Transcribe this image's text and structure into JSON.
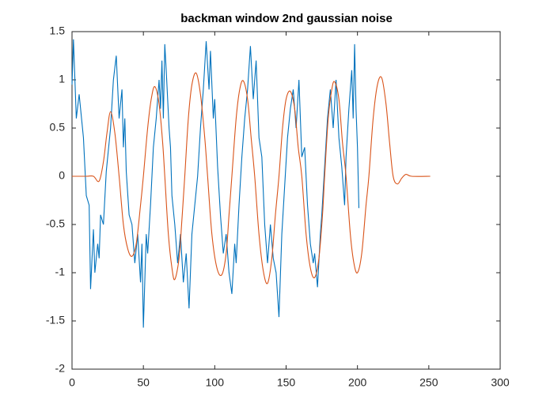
{
  "chart_data": {
    "type": "line",
    "title": "backman window 2nd gaussian noise",
    "xlim": [
      0,
      300
    ],
    "xticks": [
      0,
      50,
      100,
      150,
      200,
      250,
      300
    ],
    "ylim": [
      -2,
      1.5
    ],
    "yticks": [
      -2,
      -1.5,
      -1,
      -0.5,
      0,
      0.5,
      1,
      1.5
    ],
    "grid": false,
    "series": [
      {
        "color": "#0072bd",
        "smooth": false,
        "x": [
          0,
          1,
          3,
          5,
          7,
          8,
          10,
          12,
          13,
          15,
          16,
          18,
          19,
          20,
          22,
          24,
          25,
          27,
          29,
          31,
          33,
          35,
          36,
          37,
          38,
          40,
          42,
          44,
          46,
          48,
          49,
          50,
          52,
          53,
          55,
          56,
          57,
          59,
          61,
          62,
          63,
          64,
          65,
          66,
          68,
          69,
          70,
          72,
          74,
          76,
          78,
          80,
          82,
          84,
          86,
          88,
          90,
          92,
          94,
          96,
          97,
          99,
          100,
          102,
          104,
          106,
          108,
          110,
          112,
          114,
          115,
          117,
          119,
          121,
          123,
          125,
          127,
          129,
          131,
          133,
          135,
          137,
          139,
          141,
          143,
          145,
          147,
          149,
          151,
          153,
          155,
          157,
          159,
          161,
          163,
          165,
          167,
          169,
          170,
          172,
          174,
          175,
          177,
          179,
          181,
          183,
          185,
          187,
          189,
          191,
          192,
          194,
          196,
          197,
          198,
          199,
          200,
          201
        ],
        "values": [
          0.95,
          1.42,
          0.6,
          0.85,
          0.55,
          0.4,
          -0.2,
          -0.3,
          -1.17,
          -0.55,
          -1.0,
          -0.7,
          -0.85,
          -0.4,
          -0.5,
          0.05,
          0.2,
          0.5,
          1.0,
          1.25,
          0.6,
          0.9,
          0.3,
          0.6,
          0.05,
          -0.4,
          -0.5,
          -0.9,
          -0.6,
          -1.1,
          -0.7,
          -1.57,
          -0.6,
          -0.8,
          -0.3,
          0.0,
          0.3,
          0.6,
          1.0,
          0.7,
          1.2,
          0.6,
          1.37,
          1.1,
          0.5,
          0.3,
          -0.2,
          -0.5,
          -0.9,
          -0.6,
          -1.1,
          -0.8,
          -1.37,
          -0.6,
          -0.3,
          0.0,
          0.5,
          0.9,
          1.4,
          0.9,
          1.3,
          0.6,
          0.8,
          0.1,
          -0.4,
          -0.8,
          -0.6,
          -1.0,
          -1.22,
          -0.7,
          -0.9,
          -0.3,
          0.2,
          0.6,
          0.9,
          1.35,
          0.8,
          1.2,
          0.4,
          0.2,
          -0.5,
          -0.9,
          -0.5,
          -0.85,
          -1.0,
          -1.46,
          -0.6,
          -0.1,
          0.4,
          0.7,
          0.9,
          0.5,
          1.0,
          0.2,
          0.3,
          -0.3,
          -0.7,
          -0.9,
          -0.8,
          -1.15,
          -0.6,
          -0.4,
          0.1,
          0.6,
          0.9,
          0.5,
          1.0,
          0.4,
          0.1,
          -0.3,
          0.2,
          0.7,
          1.1,
          0.6,
          1.37,
          0.7,
          0.3,
          -0.33
        ]
      },
      {
        "color": "#d95319",
        "smooth": true,
        "x": [
          0,
          10,
          15,
          19,
          22,
          24.5,
          27,
          30,
          33,
          36,
          39,
          42,
          45,
          48,
          50,
          53,
          55.5,
          58,
          61,
          63.5,
          65,
          67.5,
          70,
          72,
          75,
          77,
          79,
          81.5,
          84,
          87,
          90,
          93,
          95,
          98,
          101.5,
          105,
          108,
          110,
          112,
          115,
          117.5,
          120,
          123,
          125.5,
          128,
          131,
          134,
          137,
          140,
          142.5,
          145,
          147.5,
          150,
          153,
          156,
          158.5,
          161,
          164,
          167,
          170,
          173,
          175.5,
          177,
          179.5,
          182,
          184,
          187,
          189.5,
          192,
          195,
          197.5,
          200,
          203,
          206,
          208,
          211,
          214,
          217,
          220,
          222.5,
          225,
          228,
          231,
          234,
          238,
          251
        ],
        "values": [
          0,
          0,
          0,
          -0.05,
          0.15,
          0.45,
          0.67,
          0.45,
          0,
          -0.5,
          -0.75,
          -0.83,
          -0.7,
          -0.3,
          0,
          0.5,
          0.8,
          0.93,
          0.75,
          0.35,
          0,
          -0.6,
          -0.95,
          -1.07,
          -0.85,
          -0.45,
          0,
          0.6,
          0.95,
          1.07,
          0.85,
          0.4,
          0,
          -0.6,
          -0.95,
          -1.02,
          -0.8,
          -0.4,
          0,
          0.6,
          0.9,
          0.99,
          0.8,
          0.4,
          0,
          -0.6,
          -0.98,
          -1.11,
          -0.85,
          -0.4,
          0,
          0.5,
          0.8,
          0.88,
          0.7,
          0.3,
          0,
          -0.6,
          -0.95,
          -1.05,
          -0.85,
          -0.4,
          0,
          0.6,
          0.9,
          0.98,
          0.8,
          0.35,
          0,
          -0.6,
          -0.9,
          -1.0,
          -0.8,
          -0.3,
          0,
          0.6,
          0.95,
          1.02,
          0.75,
          0.35,
          0,
          -0.08,
          -0.02,
          0.02,
          0,
          0
        ]
      }
    ]
  }
}
